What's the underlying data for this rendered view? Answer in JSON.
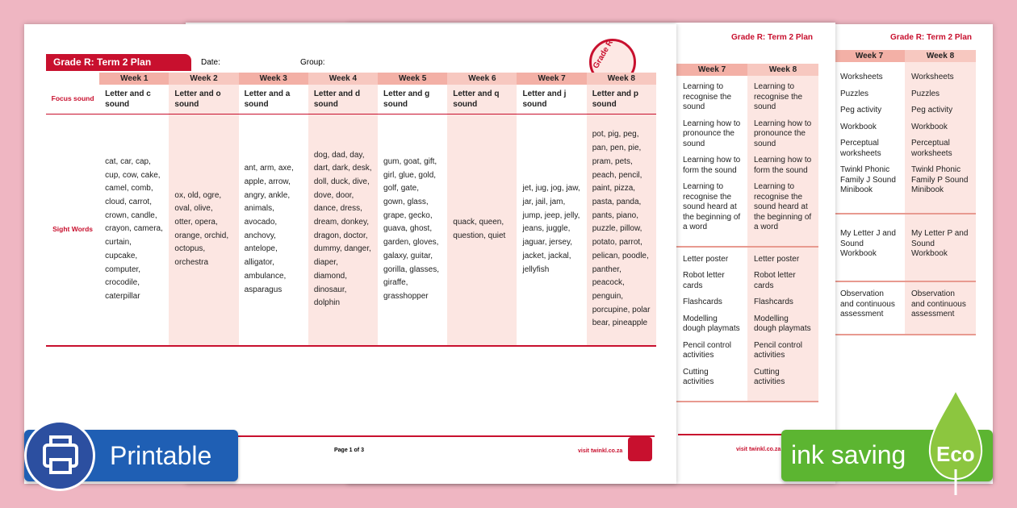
{
  "badges": {
    "printable": "Printable",
    "ink_saving": "ink saving",
    "eco": "Eco"
  },
  "page1": {
    "title": "Grade R: Term 2 Plan",
    "date_label": "Date:",
    "group_label": "Group:",
    "logo": "Grade R",
    "weeks": [
      "Week 1",
      "Week 2",
      "Week 3",
      "Week 4",
      "Week 5",
      "Week 6",
      "Week 7",
      "Week 8"
    ],
    "focus_label": "Focus sound",
    "focus": [
      "Letter and c sound",
      "Letter and o sound",
      "Letter and a sound",
      "Letter and d sound",
      "Letter and g sound",
      "Letter and q sound",
      "Letter and j sound",
      "Letter and p sound"
    ],
    "sight_label": "Sight Words",
    "sight": [
      "cat, car, cap, cup, cow, cake, camel, comb, cloud, carrot, crown, candle, crayon, camera, curtain, cupcake, computer, crocodile, caterpillar",
      "ox, old, ogre, oval, olive, otter, opera, orange, orchid, octopus, orchestra",
      "ant, arm, axe, apple, arrow, angry, ankle, animals, avocado, anchovy, antelope, alligator, ambulance, asparagus",
      "dog, dad, day, dart, dark, desk, doll, duck, dive, dove, door, dance, dress, dream, donkey, dragon, doctor, dummy, danger, diaper, diamond, dinosaur, dolphin",
      "gum, goat, gift, girl, glue, gold, golf, gate, gown, glass, grape, gecko, guava, ghost, garden, gloves, galaxy, guitar, gorilla, glasses, giraffe, grasshopper",
      "quack, queen, question, quiet",
      "jet, jug, jog, jaw, jar, jail, jam, jump, jeep, jelly, jeans, juggle, jaguar, jersey, jacket, jackal, jellyfish",
      "pot, pig, peg, pan, pen, pie, pram, pets, peach, pencil, paint, pizza, pasta, panda, pants, piano, puzzle, pillow, potato, parrot, pelican, poodle, panther, peacock, penguin, porcupine, polar bear, pineapple"
    ],
    "footer_page": "Page 1 of 3",
    "footer_url": "visit twinkl.co.za"
  },
  "page2": {
    "title": "Grade R: Term 2 Plan",
    "weeks": [
      "Week 7",
      "Week 8"
    ],
    "groups": [
      [
        [
          "Learning to recognise the sound",
          "Learning how to pronounce the sound",
          "Learning how to form the sound",
          "Learning to recognise the sound heard at the beginning of a word"
        ],
        [
          "Learning to recognise the sound",
          "Learning how to pronounce the sound",
          "Learning how to form the sound",
          "Learning to recognise the sound heard at the beginning of a word"
        ]
      ],
      [
        [
          "Letter poster",
          "Robot letter cards",
          "Flashcards",
          "Modelling dough playmats",
          "Pencil control activities",
          "Cutting activities"
        ],
        [
          "Letter poster",
          "Robot letter cards",
          "Flashcards",
          "Modelling dough playmats",
          "Pencil control activities",
          "Cutting activities"
        ]
      ]
    ],
    "footer_url": "visit twinkl.co.za"
  },
  "page3": {
    "title": "Grade R: Term 2 Plan",
    "weeks": [
      "Week 7",
      "Week 8"
    ],
    "groups": [
      [
        [
          "Worksheets",
          "Puzzles",
          "Peg activity",
          "Workbook",
          "Perceptual worksheets",
          "Twinkl Phonic Family J Sound Minibook"
        ],
        [
          "Worksheets",
          "Puzzles",
          "Peg activity",
          "Workbook",
          "Perceptual worksheets",
          "Twinkl Phonic Family P Sound Minibook"
        ]
      ],
      [
        [
          "My Letter J and Sound Workbook"
        ],
        [
          "My Letter P and Sound Workbook"
        ]
      ],
      [
        [
          "Observation and continuous assessment"
        ],
        [
          "Observation and continuous assessment"
        ]
      ]
    ]
  }
}
